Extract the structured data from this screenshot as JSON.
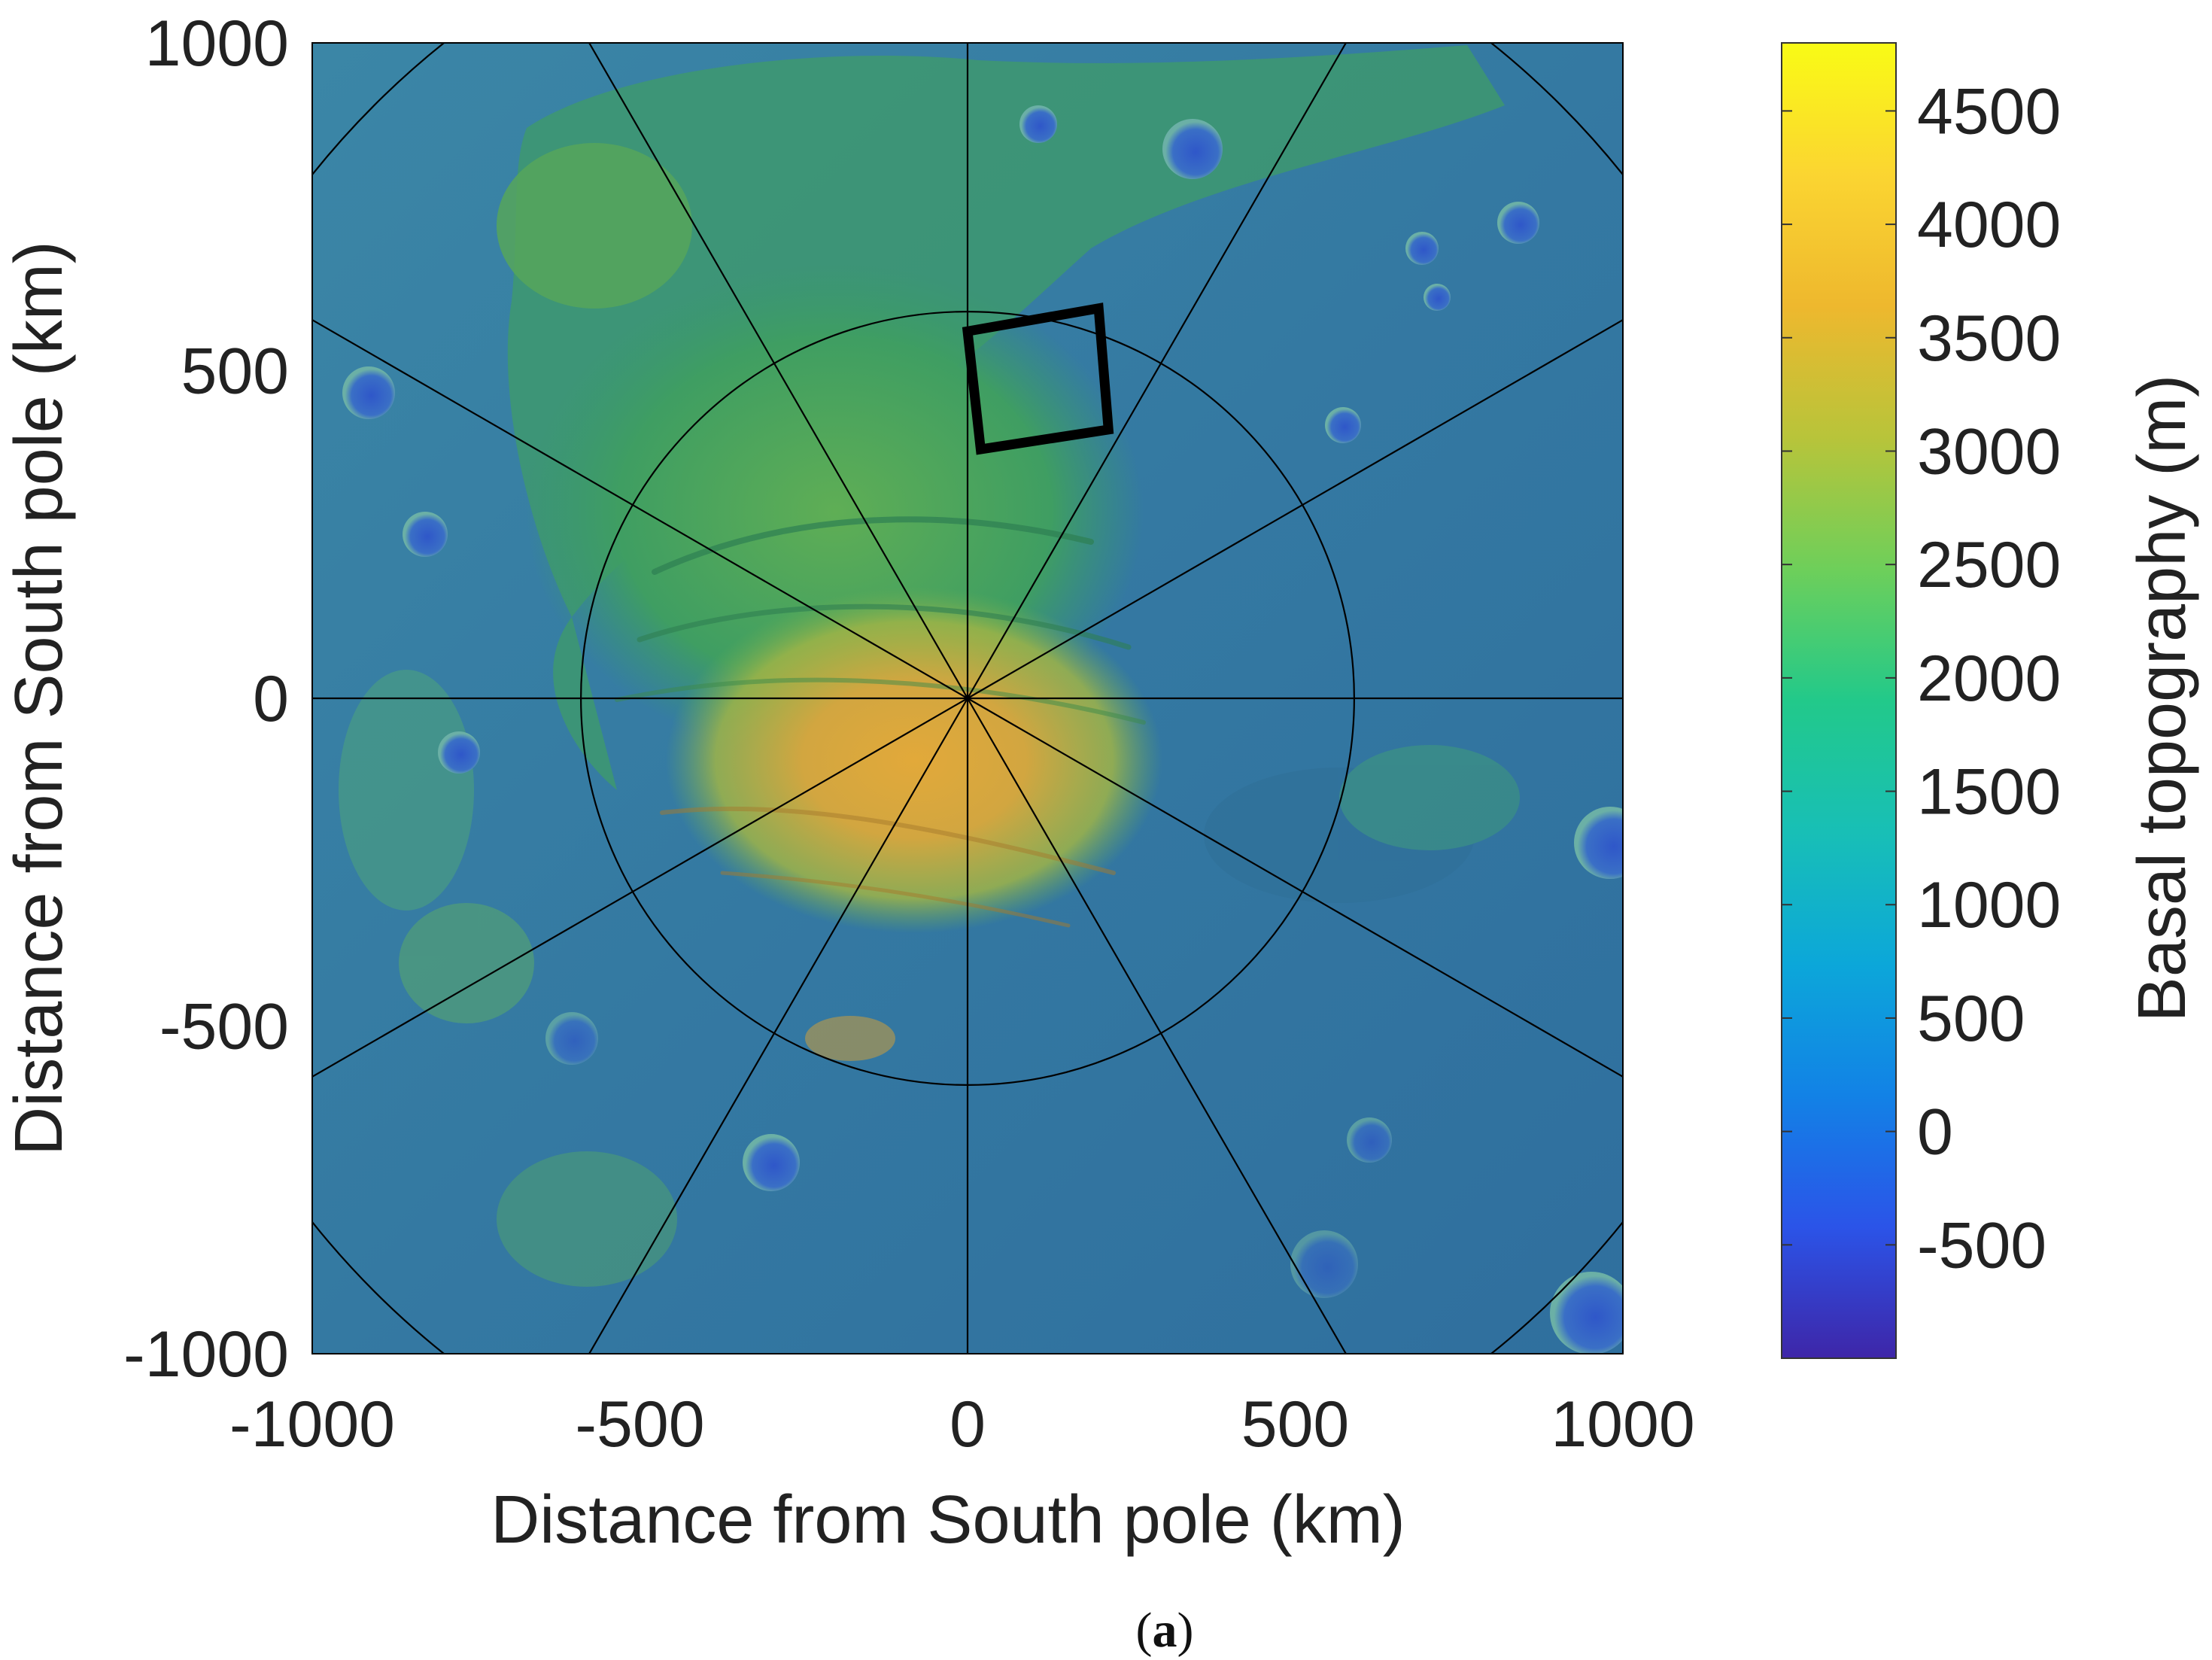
{
  "chart_data": {
    "type": "heatmap",
    "title": "",
    "xlabel": "Distance from South pole (km)",
    "ylabel": "Distance from South pole (km)",
    "xlim": [
      -1000,
      1000
    ],
    "ylim": [
      -1000,
      1000
    ],
    "x_ticks": [
      -1000,
      -500,
      0,
      500,
      1000
    ],
    "y_ticks": [
      -1000,
      -500,
      0,
      500,
      1000
    ],
    "colorbar": {
      "label": "Basal topography (m)",
      "range": [
        -1000,
        4800
      ],
      "ticks": [
        -500,
        0,
        500,
        1000,
        1500,
        2000,
        2500,
        3000,
        3500,
        4000,
        4500
      ],
      "colormap": [
        "#3e26a8",
        "#2b54e8",
        "#1282e6",
        "#0ca7d9",
        "#18bfb6",
        "#22c98a",
        "#6ecf5a",
        "#b8c43a",
        "#eeb82e",
        "#fbd531",
        "#f9fb15"
      ]
    },
    "grid": {
      "type": "polar",
      "center": [
        0,
        0
      ],
      "radii_km": [
        590,
        1280
      ],
      "spoke_count": 12
    },
    "annotations": [
      {
        "type": "rectangle",
        "corners_km": [
          [
            0,
            560
          ],
          [
            200,
            595
          ],
          [
            215,
            410
          ],
          [
            20,
            380
          ]
        ]
      }
    ],
    "legend": "none"
  },
  "caption": {
    "open": "(",
    "label": "a",
    "close": ")"
  },
  "colors": {
    "background": "#ffffff",
    "lowland": "#3477a0",
    "plateau_green": "#3c9e62",
    "dome_orange": "#d5a33a",
    "grid_lines": "#000000"
  }
}
